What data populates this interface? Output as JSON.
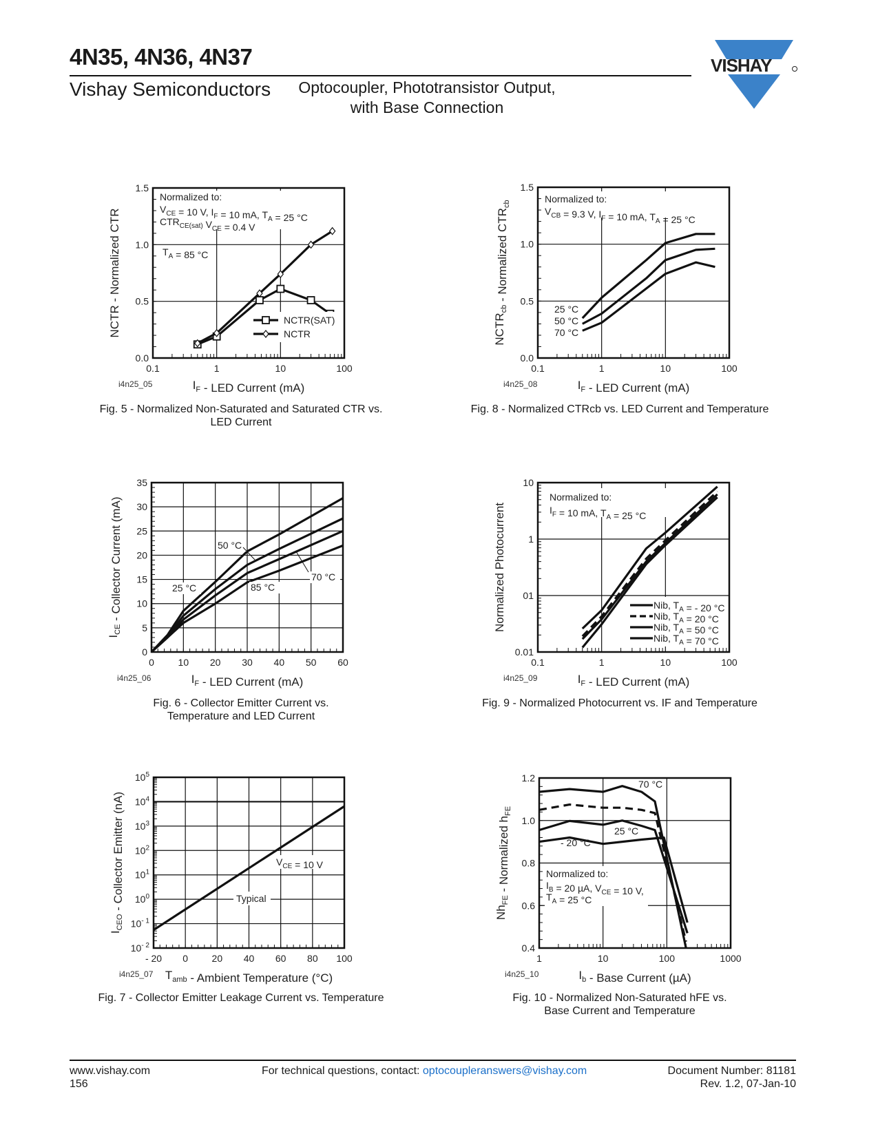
{
  "header": {
    "title": "4N35, 4N36, 4N37",
    "company": "Vishay Semiconductors",
    "subtitle_line1": "Optocoupler, Phototransistor Output,",
    "subtitle_line2": "with Base Connection",
    "logo_text": "VISHAY",
    "logo_color": "#3b82c9"
  },
  "footer": {
    "website": "www.vishay.com",
    "page_number": "156",
    "contact_prefix": "For technical questions, contact: ",
    "contact_email": "optocoupleranswers@vishay.com",
    "doc_number": "Document Number: 81181",
    "revision": "Rev. 1.2, 07-Jan-10"
  },
  "chart_data": [
    {
      "id": "fig5",
      "type": "line",
      "code": "i4n25_05",
      "caption_line1": "Fig. 5 - Normalized Non-Saturated and Saturated CTR vs.",
      "caption_line2": "LED Current",
      "xlabel": "I_F - LED Current (mA)",
      "ylabel": "NCTR - Normalized CTR",
      "xscale": "log",
      "xlim": [
        0.1,
        100
      ],
      "ylim": [
        0,
        1.5
      ],
      "xticks": [
        "0.1",
        "1",
        "10",
        "100"
      ],
      "yticks": [
        "0.0",
        "0.5",
        "1.0",
        "1.5"
      ],
      "annotations": [
        "Normalized to:",
        "V_CE = 10 V, I_F = 10 mA, T_A = 25 °C",
        "CTR_CE(sat) V_CE = 0.4 V",
        "T_A = 85 °C"
      ],
      "legend_position": "bottom-right",
      "series": [
        {
          "name": "NCTR(SAT)",
          "marker": "square",
          "x": [
            0.5,
            1,
            4.7,
            10,
            30,
            60
          ],
          "y": [
            0.12,
            0.19,
            0.51,
            0.61,
            0.51,
            0.39
          ]
        },
        {
          "name": "NCTR",
          "marker": "diamond",
          "x": [
            0.5,
            1,
            4.7,
            10,
            30,
            65
          ],
          "y": [
            0.13,
            0.22,
            0.57,
            0.74,
            1.0,
            1.12
          ]
        }
      ]
    },
    {
      "id": "fig8",
      "type": "line",
      "code": "i4n25_08",
      "caption_line1": "Fig. 8 - Normalized CTRcb vs. LED Current and Temperature",
      "caption_line2": "",
      "xlabel": "I_F - LED Current (mA)",
      "ylabel": "NCTRcb - Normalized CTRcb",
      "xscale": "log",
      "xlim": [
        0.1,
        100
      ],
      "ylim": [
        0,
        1.5
      ],
      "xticks": [
        "0.1",
        "1",
        "10",
        "100"
      ],
      "yticks": [
        "0.0",
        "0.5",
        "1.0",
        "1.5"
      ],
      "annotations": [
        "Normalized to:",
        "V_CB = 9.3 V, I_F = 10 mA, T_A = 25 °C"
      ],
      "series": [
        {
          "name": "25 °C",
          "x": [
            0.5,
            1,
            5,
            10,
            30,
            60
          ],
          "y": [
            0.35,
            0.53,
            0.86,
            1.01,
            1.09,
            1.09
          ]
        },
        {
          "name": "50 °C",
          "x": [
            0.5,
            1,
            5,
            10,
            30,
            60
          ],
          "y": [
            0.3,
            0.39,
            0.7,
            0.86,
            0.95,
            0.96
          ]
        },
        {
          "name": "70 °C",
          "x": [
            0.5,
            1,
            5,
            10,
            30,
            60
          ],
          "y": [
            0.24,
            0.31,
            0.61,
            0.74,
            0.84,
            0.8
          ]
        }
      ]
    },
    {
      "id": "fig6",
      "type": "line",
      "code": "i4n25_06",
      "caption_line1": "Fig. 6 - Collector Emitter Current vs.",
      "caption_line2": "Temperature and LED Current",
      "xlabel": "I_F - LED Current (mA)",
      "ylabel": "I_CE - Collector Current (mA)",
      "xscale": "linear",
      "xlim": [
        0,
        60
      ],
      "ylim": [
        0,
        35
      ],
      "xticks": [
        "0",
        "10",
        "20",
        "30",
        "40",
        "50",
        "60"
      ],
      "yticks": [
        "0",
        "5",
        "10",
        "15",
        "20",
        "25",
        "30",
        "35"
      ],
      "series": [
        {
          "name": "25 °C",
          "x": [
            0,
            5,
            10,
            20,
            30,
            40,
            60
          ],
          "y": [
            0,
            3.5,
            8.5,
            14.5,
            20.8,
            24.3,
            31.8
          ]
        },
        {
          "name": "50 °C",
          "x": [
            0,
            5,
            10,
            20,
            30,
            40,
            60
          ],
          "y": [
            0,
            3.2,
            7.5,
            13,
            18,
            21.3,
            27.6
          ]
        },
        {
          "name": "70 °C",
          "x": [
            0,
            5,
            10,
            20,
            30,
            40,
            60
          ],
          "y": [
            0,
            3,
            6.7,
            11.7,
            16.3,
            19.2,
            25
          ]
        },
        {
          "name": "85 °C",
          "x": [
            0,
            5,
            10,
            20,
            30,
            40,
            60
          ],
          "y": [
            0,
            3,
            6,
            10,
            14.4,
            16.8,
            22
          ]
        }
      ]
    },
    {
      "id": "fig9",
      "type": "line",
      "code": "i4n25_09",
      "caption_line1": "Fig. 9 - Normalized Photocurrent vs. IF and Temperature",
      "caption_line2": "",
      "xlabel": "I_F - LED Current (mA)",
      "ylabel": "Normalized Photocurrent",
      "xscale": "log",
      "xlim": [
        0.1,
        100
      ],
      "yscale": "log",
      "ylim": [
        0.01,
        10
      ],
      "xticks": [
        "0.1",
        "1",
        "10",
        "100"
      ],
      "yticks": [
        "0.01",
        "01",
        "1",
        "10"
      ],
      "annotations": [
        "Normalized to:",
        "I_F = 10 mA, T_A = 25 °C"
      ],
      "legend_position": "bottom-right",
      "series": [
        {
          "name": "Nib, T_A = - 20 °C",
          "dash": false,
          "x": [
            0.5,
            1,
            5,
            10,
            65
          ],
          "y": [
            0.026,
            0.055,
            0.68,
            1.3,
            8.5
          ]
        },
        {
          "name": "Nib, T_A = 20 °C",
          "dash": true,
          "x": [
            0.5,
            1,
            5,
            10,
            65
          ],
          "y": [
            0.019,
            0.043,
            0.45,
            0.95,
            7
          ]
        },
        {
          "name": "Nib, T_A = 50 °C",
          "dash": false,
          "x": [
            0.5,
            1,
            5,
            10,
            65
          ],
          "y": [
            0.017,
            0.038,
            0.4,
            0.85,
            6.2
          ]
        },
        {
          "name": "Nib, T_A = 70 °C",
          "dash": false,
          "x": [
            0.5,
            1,
            5,
            10,
            65
          ],
          "y": [
            0.012,
            0.031,
            0.36,
            0.78,
            5.5
          ]
        }
      ]
    },
    {
      "id": "fig7",
      "type": "line",
      "code": "i4n25_07",
      "caption_line1": "Fig. 7 - Collector Emitter Leakage Current vs. Temperature",
      "caption_line2": "",
      "xlabel": "T_amb - Ambient Temperature (°C)",
      "ylabel": "I_CEO - Collector Emitter (nA)",
      "xscale": "linear",
      "xlim": [
        -20,
        100
      ],
      "yscale": "log",
      "ylim": [
        0.01,
        100000
      ],
      "xticks": [
        "- 20",
        "0",
        "20",
        "40",
        "60",
        "80",
        "100"
      ],
      "yticks": [
        "10^-2",
        "10^-1",
        "10^0",
        "10^1",
        "10^2",
        "10^3",
        "10^4",
        "10^5"
      ],
      "annotations": [
        "V_CE = 10 V",
        "Typical"
      ],
      "series": [
        {
          "name": "Typical",
          "x": [
            -20,
            100
          ],
          "y": [
            0.055,
            6500
          ]
        }
      ]
    },
    {
      "id": "fig10",
      "type": "line",
      "code": "i4n25_10",
      "caption_line1": "Fig. 10 - Normalized Non-Saturated hFE vs.",
      "caption_line2": "Base Current and Temperature",
      "xlabel": "I_b - Base Current (µA)",
      "ylabel": "Nh_FE - Normalized h_FE",
      "xscale": "log",
      "xlim": [
        1,
        1000
      ],
      "ylim": [
        0.4,
        1.2
      ],
      "xticks": [
        "1",
        "10",
        "100",
        "1000"
      ],
      "yticks": [
        "0.4",
        "0.6",
        "0.8",
        "1.0",
        "1.2"
      ],
      "annotations": [
        "Normalized to:",
        "I_B = 20 µA, V_CE = 10 V,",
        "T_A = 25 °C"
      ],
      "series": [
        {
          "name": "70 °C",
          "dash": false,
          "x": [
            1,
            3,
            10,
            20,
            40,
            65,
            200
          ],
          "y": [
            1.135,
            1.148,
            1.135,
            1.162,
            1.135,
            1.09,
            0.4
          ]
        },
        {
          "name": "50 °C",
          "dash": true,
          "x": [
            1,
            3,
            10,
            20,
            40,
            65,
            200
          ],
          "y": [
            1.05,
            1.075,
            1.06,
            1.06,
            1.05,
            1.035,
            0.43
          ]
        },
        {
          "name": "25 °C",
          "dash": false,
          "x": [
            1,
            3,
            10,
            20,
            40,
            65,
            210
          ],
          "y": [
            0.955,
            0.998,
            0.98,
            1.0,
            0.975,
            0.955,
            0.47
          ]
        },
        {
          "name": "- 20 °C",
          "dash": false,
          "x": [
            1,
            3,
            10,
            20,
            40,
            90,
            210
          ],
          "y": [
            0.9,
            0.92,
            0.89,
            0.9,
            0.91,
            0.92,
            0.52
          ]
        }
      ]
    }
  ]
}
